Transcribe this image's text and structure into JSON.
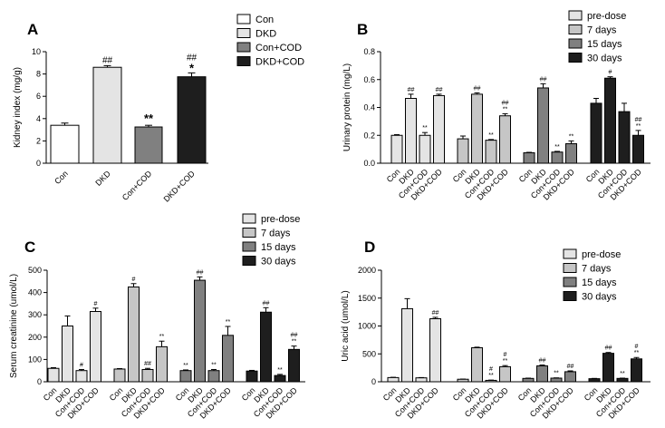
{
  "figure": {
    "categories": [
      "Con",
      "DKD",
      "Con+COD",
      "DKD+COD"
    ],
    "colors": {
      "Con": "#ffffff",
      "DKD": "#e4e4e4",
      "Con+COD": "#808080",
      "DKD+COD": "#1e1e1e",
      "pre-dose": "#e4e4e4",
      "7 days": "#c6c6c6",
      "15 days": "#808080",
      "30 days": "#1e1e1e",
      "outline": "#000000"
    }
  },
  "chart_data": [
    {
      "id": "A",
      "type": "bar",
      "panel_label": "A",
      "ylabel": "Kidney index (mg/g)",
      "ylim": [
        0,
        10
      ],
      "yticks": [
        0,
        2,
        4,
        6,
        8,
        10
      ],
      "legend": [
        "Con",
        "DKD",
        "Con+COD",
        "DKD+COD"
      ],
      "legend_position": "top-right",
      "series": [
        {
          "name": "Kidney index",
          "values": [
            3.4,
            8.6,
            3.25,
            7.75
          ],
          "errors": [
            0.2,
            0.15,
            0.15,
            0.35
          ],
          "sig_top": [
            "",
            "",
            "",
            "*"
          ],
          "sig_bottom": [
            "",
            "##",
            "**",
            "##"
          ]
        }
      ]
    },
    {
      "id": "B",
      "type": "bar",
      "panel_label": "B",
      "ylabel": "Urinary protein (mg/L)",
      "ylim": [
        0,
        0.8
      ],
      "yticks": [
        0.0,
        0.2,
        0.4,
        0.6,
        0.8
      ],
      "ytick_labels": [
        "0.0",
        "0.2",
        "0.4",
        "0.6",
        "0.8"
      ],
      "legend": [
        "pre-dose",
        "7 days",
        "15 days",
        "30 days"
      ],
      "legend_position": "top-right",
      "series": [
        {
          "name": "pre-dose",
          "values": [
            0.2,
            0.465,
            0.2,
            0.485
          ],
          "errors": [
            0.005,
            0.03,
            0.02,
            0.01
          ],
          "sig_top": [
            "",
            "",
            "",
            ""
          ],
          "sig_bottom": [
            "",
            "##",
            "**",
            "##"
          ]
        },
        {
          "name": "7 days",
          "values": [
            0.175,
            0.495,
            0.165,
            0.34
          ],
          "errors": [
            0.02,
            0.01,
            0.005,
            0.015
          ],
          "sig_top": [
            "",
            "",
            "",
            "##"
          ],
          "sig_bottom": [
            "",
            "##",
            "**",
            "**"
          ]
        },
        {
          "name": "15 days",
          "values": [
            0.075,
            0.54,
            0.08,
            0.14
          ],
          "errors": [
            0.003,
            0.03,
            0.005,
            0.02
          ],
          "sig_top": [
            "",
            "",
            "",
            ""
          ],
          "sig_bottom": [
            "",
            "##",
            "**",
            "**"
          ]
        },
        {
          "name": "30 days",
          "values": [
            0.43,
            0.61,
            0.37,
            0.2
          ],
          "errors": [
            0.035,
            0.01,
            0.06,
            0.035
          ],
          "sig_top": [
            "",
            "",
            "",
            "##"
          ],
          "sig_bottom": [
            "",
            "#",
            "",
            "**"
          ]
        }
      ]
    },
    {
      "id": "C",
      "type": "bar",
      "panel_label": "C",
      "ylabel": "Serum creatinine (umol/L)",
      "ylim": [
        0,
        500
      ],
      "yticks": [
        0,
        100,
        200,
        300,
        400,
        500
      ],
      "legend": [
        "pre-dose",
        "7 days",
        "15 days",
        "30 days"
      ],
      "legend_position": "top-right",
      "series": [
        {
          "name": "pre-dose",
          "values": [
            60,
            250,
            50,
            315
          ],
          "errors": [
            3,
            45,
            5,
            15
          ],
          "sig_top": [
            "",
            "",
            "",
            ""
          ],
          "sig_bottom": [
            "",
            "",
            "#",
            "#"
          ]
        },
        {
          "name": "7 days",
          "values": [
            57,
            425,
            55,
            157
          ],
          "errors": [
            2,
            15,
            5,
            25
          ],
          "sig_top": [
            "",
            "",
            "",
            ""
          ],
          "sig_bottom": [
            "",
            "#",
            "##",
            "**"
          ]
        },
        {
          "name": "15 days",
          "values": [
            50,
            455,
            50,
            208
          ],
          "errors": [
            3,
            15,
            5,
            40
          ],
          "sig_top": [
            "",
            "",
            "",
            ""
          ],
          "sig_bottom": [
            "**",
            "##",
            "**",
            "**"
          ]
        },
        {
          "name": "30 days",
          "values": [
            48,
            312,
            28,
            145
          ],
          "errors": [
            3,
            20,
            5,
            15
          ],
          "sig_top": [
            "",
            "",
            "",
            "##"
          ],
          "sig_bottom": [
            "",
            "##",
            "**",
            "**"
          ]
        }
      ]
    },
    {
      "id": "D",
      "type": "bar",
      "panel_label": "D",
      "ylabel": "Uric acid (umol/L)",
      "ylim": [
        0,
        2000
      ],
      "yticks": [
        0,
        500,
        1000,
        1500,
        2000
      ],
      "legend": [
        "pre-dose",
        "7 days",
        "15 days",
        "30 days"
      ],
      "legend_position": "top-right",
      "series": [
        {
          "name": "pre-dose",
          "values": [
            75,
            1310,
            70,
            1130
          ],
          "errors": [
            5,
            180,
            5,
            25
          ],
          "sig_top": [
            "",
            "",
            "",
            ""
          ],
          "sig_bottom": [
            "",
            "",
            "",
            "##"
          ]
        },
        {
          "name": "7 days",
          "values": [
            45,
            610,
            25,
            270
          ],
          "errors": [
            3,
            10,
            5,
            20
          ],
          "sig_top": [
            "",
            "",
            "#",
            "#"
          ],
          "sig_bottom": [
            "",
            "",
            "**",
            "**"
          ]
        },
        {
          "name": "15 days",
          "values": [
            60,
            285,
            65,
            180
          ],
          "errors": [
            5,
            15,
            5,
            15
          ],
          "sig_top": [
            "",
            "",
            "",
            ""
          ],
          "sig_bottom": [
            "",
            "##",
            "**",
            "##"
          ]
        },
        {
          "name": "30 days",
          "values": [
            55,
            510,
            60,
            410
          ],
          "errors": [
            5,
            15,
            5,
            25
          ],
          "sig_top": [
            "",
            "",
            "",
            "#"
          ],
          "sig_bottom": [
            "",
            "##",
            "**",
            "**"
          ]
        }
      ]
    }
  ]
}
